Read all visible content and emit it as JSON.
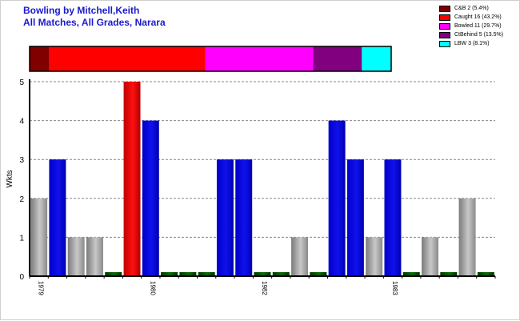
{
  "header": {
    "title_line1": "Bowling by Mitchell,Keith",
    "title_line2": "All Matches, All Grades, Narara"
  },
  "legend": [
    {
      "label": "C&B 2 (5.4%)",
      "color": "#800000"
    },
    {
      "label": "Caught 16 (43.2%)",
      "color": "#ff0000"
    },
    {
      "label": "Bowled 11 (29.7%)",
      "color": "#ff00ff"
    },
    {
      "label": "CtBehind 5 (13.5%)",
      "color": "#800080"
    },
    {
      "label": "LBW 3 (8.1%)",
      "color": "#00ffff"
    }
  ],
  "chart_data": {
    "type": "bar",
    "ylabel": "Wkts",
    "ylim": [
      0,
      5
    ],
    "yticks": [
      0,
      1,
      2,
      3,
      4,
      5
    ],
    "grid": true,
    "values": [
      2,
      3,
      1,
      1,
      0,
      5,
      4,
      0,
      0,
      0,
      3,
      3,
      0,
      0,
      1,
      0,
      4,
      3,
      1,
      3,
      0,
      1,
      0,
      2,
      0
    ],
    "bar_colors": [
      "gray",
      "blue",
      "gray",
      "gray",
      "green",
      "red",
      "blue",
      "green",
      "green",
      "green",
      "blue",
      "blue",
      "green",
      "green",
      "gray",
      "green",
      "blue",
      "blue",
      "gray",
      "blue",
      "green",
      "gray",
      "green",
      "gray",
      "green"
    ],
    "x_labels": [
      {
        "index": 0,
        "label": "1979"
      },
      {
        "index": 6,
        "label": "1980"
      },
      {
        "index": 12,
        "label": "1982"
      },
      {
        "index": 19,
        "label": "1983"
      }
    ],
    "dismissal_breakdown": [
      {
        "type": "C&B",
        "count": 2,
        "percent": 5.4
      },
      {
        "type": "Caught",
        "count": 16,
        "percent": 43.2
      },
      {
        "type": "Bowled",
        "count": 11,
        "percent": 29.7
      },
      {
        "type": "CtBehind",
        "count": 5,
        "percent": 13.5
      },
      {
        "type": "LBW",
        "count": 3,
        "percent": 8.1
      }
    ]
  }
}
